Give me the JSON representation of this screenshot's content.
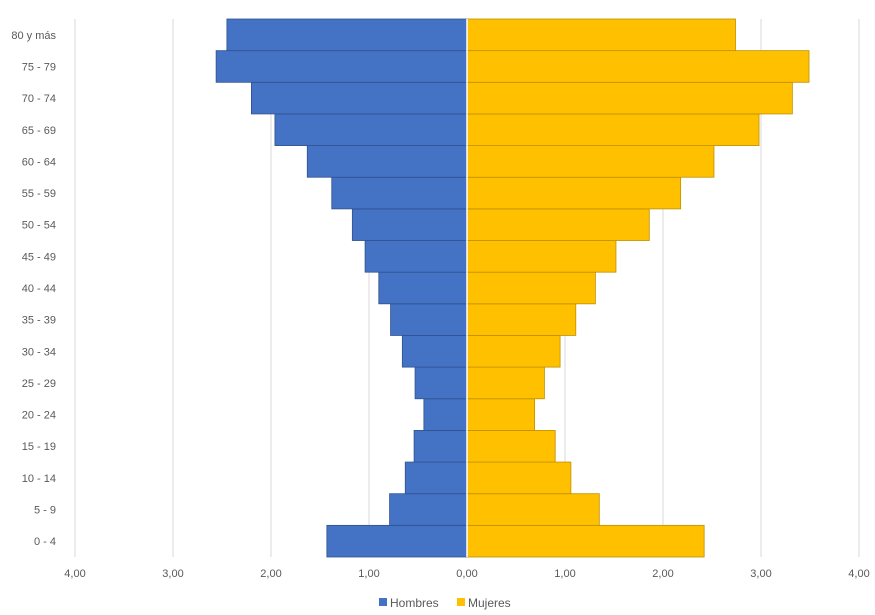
{
  "chart_data": {
    "type": "bar",
    "orientation": "horizontal",
    "categories": [
      "0 - 4",
      "5 - 9",
      "10 - 14",
      "15 - 19",
      "20 - 24",
      "25 - 29",
      "30 - 34",
      "35 - 39",
      "40 - 44",
      "45 - 49",
      "50 - 54",
      "55 - 59",
      "60 - 64",
      "65 - 69",
      "70 - 74",
      "75 - 79",
      "80 y más"
    ],
    "series": [
      {
        "name": "Hombres",
        "color": "#4472C4",
        "side": "left",
        "values": [
          1.43,
          0.79,
          0.63,
          0.54,
          0.44,
          0.53,
          0.66,
          0.78,
          0.9,
          1.04,
          1.17,
          1.38,
          1.63,
          1.96,
          2.2,
          2.56,
          2.45
        ]
      },
      {
        "name": "Mujeres",
        "color": "#FFC000",
        "side": "right",
        "values": [
          2.42,
          1.35,
          1.06,
          0.9,
          0.69,
          0.79,
          0.95,
          1.11,
          1.31,
          1.52,
          1.86,
          2.18,
          2.52,
          2.98,
          3.32,
          3.49,
          2.74
        ]
      }
    ],
    "x_ticks": [
      "4,00",
      "3,00",
      "2,00",
      "1,00",
      "0,00",
      "1,00",
      "2,00",
      "3,00",
      "4,00"
    ],
    "xlim": [
      -4,
      4
    ],
    "grid": "vertical",
    "legend": "bottom-center"
  }
}
